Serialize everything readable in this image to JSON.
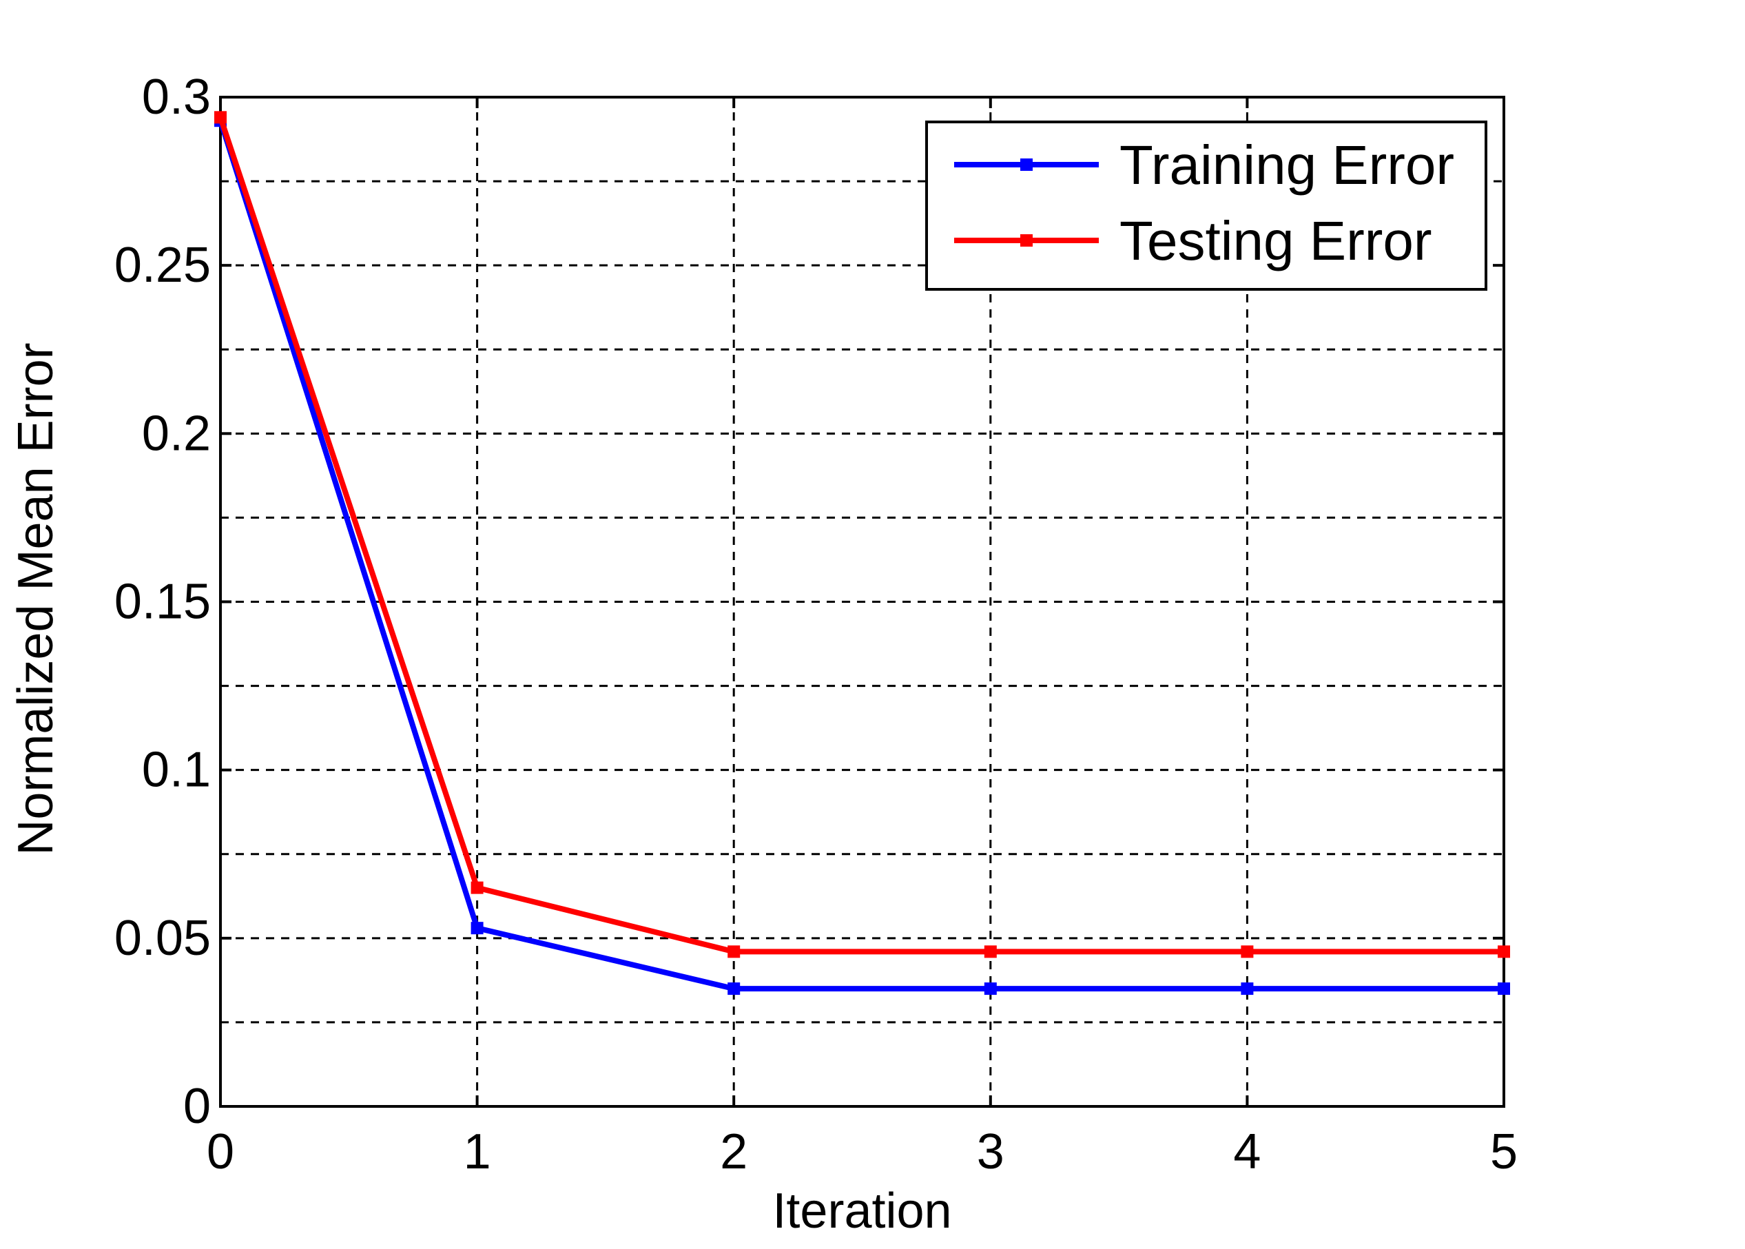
{
  "chart_data": {
    "type": "line",
    "xlabel": "Iteration",
    "ylabel": "Normalized Mean Error",
    "xlim": [
      0,
      5
    ],
    "ylim": [
      0,
      0.3
    ],
    "x": [
      0,
      1,
      2,
      3,
      4,
      5
    ],
    "xticks": [
      "0",
      "1",
      "2",
      "3",
      "4",
      "5"
    ],
    "yticks": [
      "0",
      "0.05",
      "0.1",
      "0.15",
      "0.2",
      "0.25",
      "0.3"
    ],
    "yminor": [
      0.025,
      0.075,
      0.125,
      0.175,
      0.225,
      0.275
    ],
    "grid": true,
    "legend_position": "top-right",
    "series": [
      {
        "name": "Training Error",
        "color": "#0000ff",
        "values": [
          0.293,
          0.053,
          0.035,
          0.035,
          0.035,
          0.035
        ]
      },
      {
        "name": "Testing Error",
        "color": "#ff0000",
        "values": [
          0.294,
          0.065,
          0.046,
          0.046,
          0.046,
          0.046
        ]
      }
    ]
  }
}
